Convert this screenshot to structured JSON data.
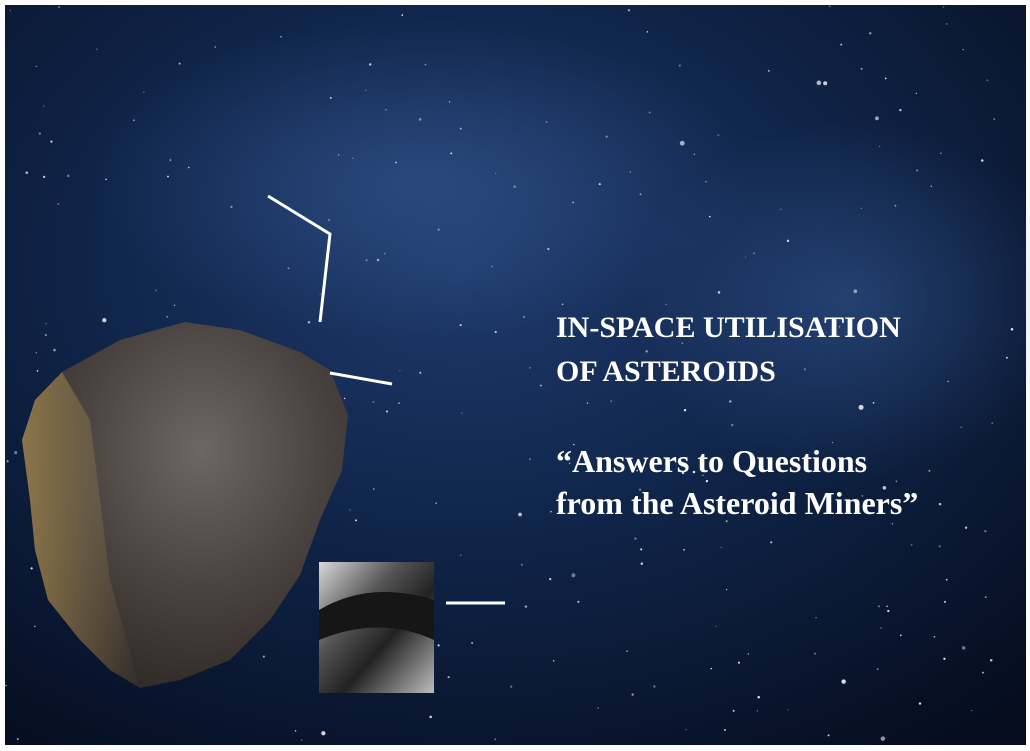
{
  "slide": {
    "title": [
      "IN-SPACE UTILISATION",
      "OF ASTEROIDS"
    ],
    "subtitle": [
      "“Answers to Questions",
      "from the Asteroid Miners”"
    ]
  }
}
